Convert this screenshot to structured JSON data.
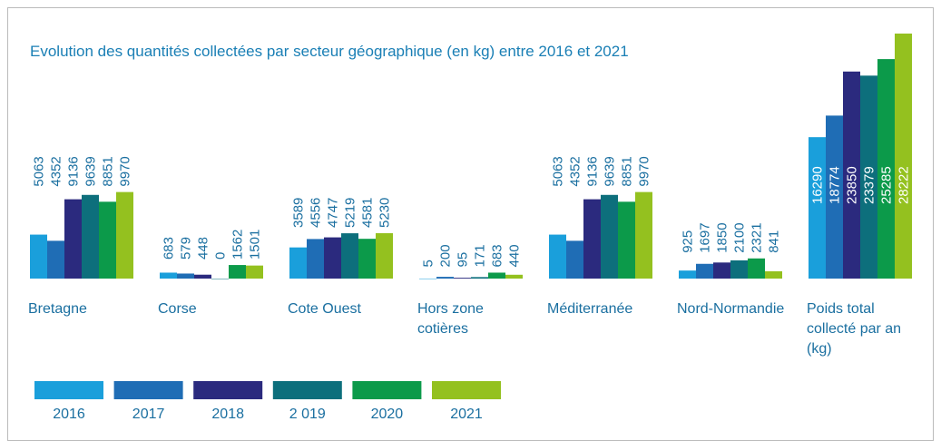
{
  "chart_data": {
    "type": "bar",
    "title": "Evolution des quantités collectées par secteur géographique (en kg) entre 2016 et 2021",
    "categories": [
      "Bretagne",
      "Corse",
      "Cote Ouest",
      "Hors zone cotières",
      "Méditerranée",
      "Nord-Normandie",
      "Poids total collecté par an (kg)"
    ],
    "series": [
      {
        "name": "2016",
        "color": "#1a9fdb",
        "values": [
          5063,
          683,
          3589,
          5,
          5063,
          925,
          16290
        ]
      },
      {
        "name": "2017",
        "color": "#1f6db5",
        "values": [
          4352,
          579,
          4556,
          200,
          4352,
          1697,
          18774
        ]
      },
      {
        "name": "2018",
        "color": "#2b2a7e",
        "values": [
          9136,
          448,
          4747,
          95,
          9136,
          1850,
          23850
        ]
      },
      {
        "name": "2 019",
        "color": "#0d6f7c",
        "values": [
          9639,
          0,
          5219,
          171,
          9639,
          2100,
          23379
        ]
      },
      {
        "name": "2020",
        "color": "#0c9a4a",
        "values": [
          8851,
          1562,
          4581,
          683,
          8851,
          2321,
          25285
        ]
      },
      {
        "name": "2021",
        "color": "#94c11f",
        "values": [
          9970,
          1501,
          5230,
          440,
          9970,
          841,
          28222
        ]
      }
    ],
    "ylim": [
      0,
      30000
    ]
  }
}
